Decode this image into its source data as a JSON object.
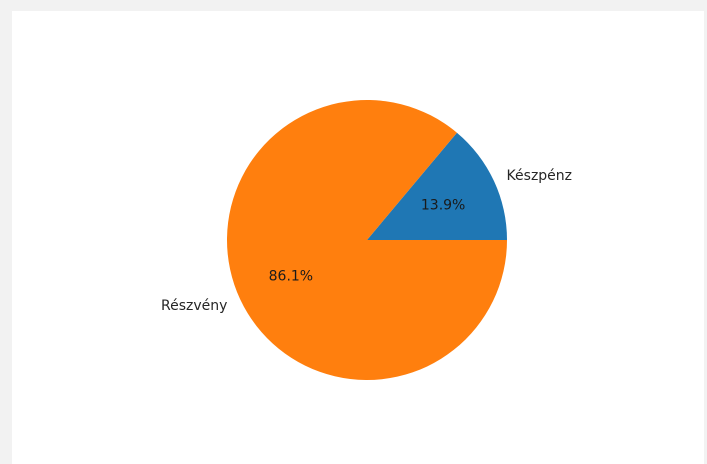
{
  "chart_data": {
    "type": "pie",
    "title": "",
    "start_angle_deg": 0,
    "direction": "counterclockwise",
    "slices": [
      {
        "label": "Készpénz",
        "value": 13.9,
        "pct_label": "13.9%",
        "color": "#1f77b4"
      },
      {
        "label": "Részvény",
        "value": 86.1,
        "pct_label": "86.1%",
        "color": "#ff7f0e"
      }
    ]
  }
}
